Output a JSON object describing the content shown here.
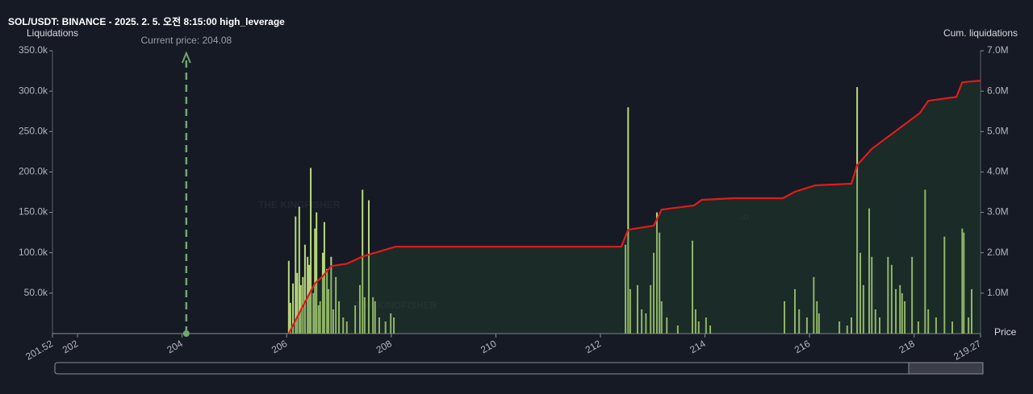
{
  "chart_data": {
    "type": "bar",
    "title": "SOL/USDT: BINANCE - 2025. 2. 5. 오전 8:15:00 high_leverage",
    "y_label": "Liquidations",
    "y2_label": "Cum. liquidations",
    "x_label": "Price",
    "watermark": "THE KINGFISHER",
    "watermark_suffix": ".io",
    "annotation": {
      "text": "Current price: 204.08",
      "x": 204.08,
      "color": "#6fa86f"
    },
    "xlim": [
      201.52,
      219.27
    ],
    "xticks": [
      201.52,
      202,
      204,
      206,
      208,
      210,
      212,
      214,
      216,
      218,
      219.27
    ],
    "ylim": [
      0,
      350000
    ],
    "yticks": [
      {
        "value": 50000,
        "label": "50.0k"
      },
      {
        "value": 100000,
        "label": "100.0k"
      },
      {
        "value": 150000,
        "label": "150.0k"
      },
      {
        "value": 200000,
        "label": "200.0k"
      },
      {
        "value": 250000,
        "label": "250.0k"
      },
      {
        "value": 300000,
        "label": "300.0k"
      },
      {
        "value": 350000,
        "label": "350.0k"
      }
    ],
    "y2lim": [
      0,
      7000000
    ],
    "y2ticks": [
      {
        "value": 1000000,
        "label": "1.0M"
      },
      {
        "value": 2000000,
        "label": "2.0M"
      },
      {
        "value": 3000000,
        "label": "3.0M"
      },
      {
        "value": 4000000,
        "label": "4.0M"
      },
      {
        "value": 5000000,
        "label": "5.0M"
      },
      {
        "value": 6000000,
        "label": "6.0M"
      },
      {
        "value": 7000000,
        "label": "7.0M"
      }
    ],
    "series": [
      {
        "type": "bar",
        "color": "#b9d97c",
        "x": [
          206.04,
          206.07,
          206.12,
          206.17,
          206.2,
          206.24,
          206.27,
          206.31,
          206.35,
          206.4,
          206.43,
          206.46,
          206.51,
          206.54,
          206.57,
          206.61,
          206.64,
          206.69,
          206.72,
          206.77,
          206.8,
          206.85,
          206.89,
          206.94,
          207.0,
          207.08,
          207.15,
          207.31,
          207.4,
          207.45,
          207.49,
          207.57,
          207.65,
          207.69,
          207.77,
          207.89,
          207.99,
          208.05,
          212.48,
          212.53,
          212.57,
          212.71,
          212.79,
          212.87,
          212.96,
          213.02,
          213.08,
          213.13,
          213.17,
          213.27,
          213.48,
          213.76,
          213.82,
          213.88,
          214.02,
          214.1,
          215.52,
          215.72,
          215.8,
          215.95,
          216.08,
          216.14,
          216.18,
          216.57,
          216.72,
          216.8,
          216.91,
          216.97,
          217.03,
          217.14,
          217.19,
          217.26,
          217.34,
          217.5,
          217.57,
          217.65,
          217.73,
          217.77,
          217.82,
          217.96,
          218.08,
          218.21,
          218.27,
          218.42,
          218.58,
          218.73,
          218.92,
          218.95,
          219.04,
          219.1
        ],
        "values": [
          90000,
          38000,
          62000,
          145000,
          75000,
          157000,
          60000,
          70000,
          110000,
          95000,
          85000,
          205000,
          50000,
          130000,
          150000,
          35000,
          40000,
          100000,
          138000,
          80000,
          55000,
          95000,
          30000,
          70000,
          40000,
          20000,
          15000,
          35000,
          60000,
          178000,
          45000,
          165000,
          45000,
          40000,
          20000,
          15000,
          25000,
          20000,
          110000,
          280000,
          55000,
          60000,
          30000,
          25000,
          60000,
          100000,
          150000,
          125000,
          40000,
          20000,
          10000,
          115000,
          30000,
          15000,
          20000,
          10000,
          40000,
          55000,
          30000,
          20000,
          70000,
          40000,
          25000,
          15000,
          10000,
          20000,
          305000,
          100000,
          60000,
          155000,
          95000,
          30000,
          20000,
          95000,
          85000,
          55000,
          60000,
          50000,
          40000,
          95000,
          15000,
          178000,
          30000,
          20000,
          120000,
          15000,
          130000,
          125000,
          20000,
          55000
        ]
      },
      {
        "type": "line",
        "color": "#e31a1c",
        "axis": "y2",
        "x": [
          206.04,
          206.31,
          206.54,
          206.69,
          206.85,
          207.15,
          207.46,
          207.77,
          208.08,
          212.4,
          212.53,
          213.02,
          213.17,
          213.79,
          213.94,
          214.56,
          215.49,
          215.72,
          216.11,
          216.8,
          216.91,
          217.19,
          217.5,
          217.8,
          218.11,
          218.27,
          218.81,
          218.92,
          219.27
        ],
        "values": [
          0,
          680000,
          1240000,
          1420000,
          1670000,
          1730000,
          1910000,
          2030000,
          2150000,
          2150000,
          2570000,
          2670000,
          3070000,
          3170000,
          3310000,
          3350000,
          3350000,
          3510000,
          3670000,
          3710000,
          4170000,
          4570000,
          4870000,
          5160000,
          5460000,
          5760000,
          5860000,
          6220000,
          6260000
        ]
      }
    ]
  }
}
